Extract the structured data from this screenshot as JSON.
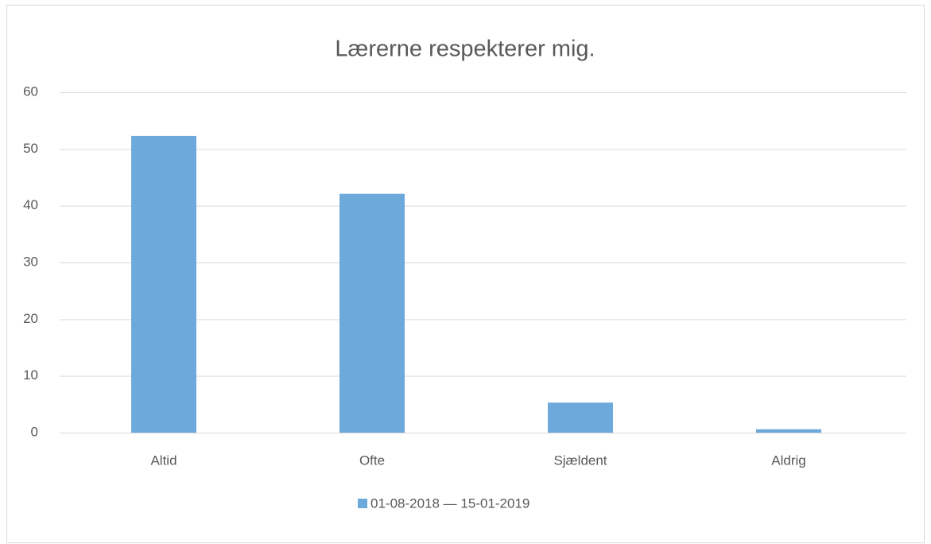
{
  "chart_data": {
    "type": "bar",
    "title": "Lærerne respekterer mig.",
    "categories": [
      "Altid",
      "Ofte",
      "Sjældent",
      "Aldrig"
    ],
    "series": [
      {
        "name": "01-08-2018 — 15-01-2019",
        "color": "#6ea9dc",
        "values": [
          52.3,
          42.1,
          5.3,
          0.6
        ]
      }
    ],
    "ylim": [
      0,
      60
    ],
    "yticks": [
      0,
      10,
      20,
      30,
      40,
      50,
      60
    ],
    "grid": true,
    "legend": "bottom"
  }
}
